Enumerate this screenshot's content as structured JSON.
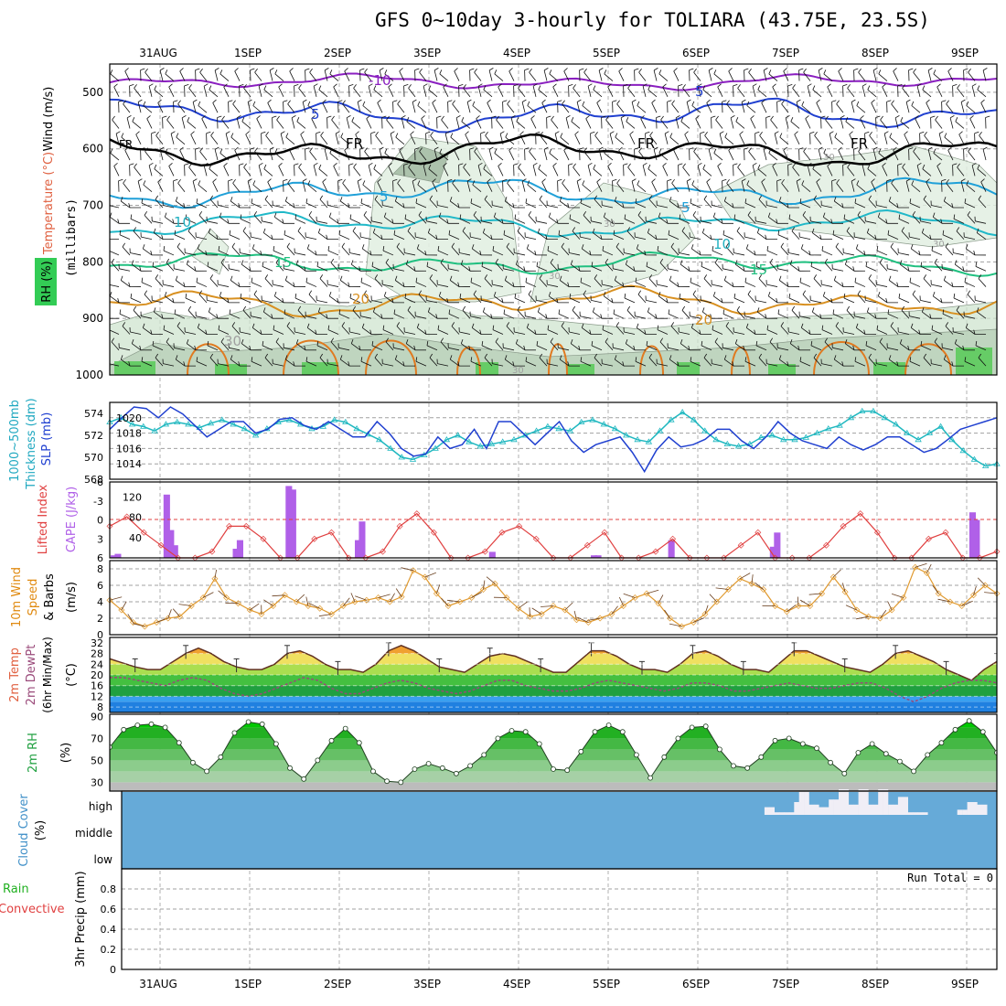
{
  "title": "GFS 0~10day 3-hourly for TOLIARA (43.75E, 23.5S)",
  "dates": [
    "31AUG",
    "1SEP",
    "2SEP",
    "3SEP",
    "4SEP",
    "5SEP",
    "6SEP",
    "7SEP",
    "8SEP",
    "9SEP"
  ],
  "colors": {
    "panel_border": "#000",
    "grid": "#a0a0a0",
    "purple": "#8a1fc0",
    "blue": "#2040d0",
    "teal": "#20b0c0",
    "green": "#20c060",
    "orange": "#e08a10",
    "cloud": "#66aad8"
  },
  "panels": {
    "upper": {
      "labels": [
        "Wind (m/s)",
        "Temperature (°C)",
        "RH (%)",
        "(millibars)"
      ],
      "yticks": [
        "500",
        "600",
        "700",
        "800",
        "900",
        "1000"
      ],
      "contour_labels": [
        {
          "text": "-10",
          "color": "#8a1fc0"
        },
        {
          "text": "5",
          "color": "#2040d0"
        },
        {
          "text": "FR",
          "color": "#000"
        },
        {
          "text": "5",
          "color": "#20a0d8"
        },
        {
          "text": "10",
          "color": "#20b0c0"
        },
        {
          "text": "15",
          "color": "#20c080"
        },
        {
          "text": "20",
          "color": "#d89020"
        },
        {
          "text": "30",
          "color": "#a0a0a0"
        }
      ]
    },
    "pressure": {
      "labels": [
        "1000~500mb",
        "Thickness (dm)",
        "SLP (mb)"
      ],
      "left_ticks": [
        "574",
        "572",
        "570",
        "568"
      ],
      "right_ticks": [
        "1020",
        "1018",
        "1016",
        "1014"
      ]
    },
    "instability": {
      "labels": [
        "Lifted Index",
        "CAPE (J/kg)"
      ],
      "left_ticks": [
        "-6",
        "-3",
        "0",
        "3",
        "6"
      ],
      "right_ticks": [
        "120",
        "80",
        "40"
      ]
    },
    "wind10m": {
      "labels": [
        "10m Wind",
        "Speed",
        "& Barbs",
        "(m/s)"
      ],
      "ticks": [
        "8",
        "6",
        "4",
        "2",
        "0"
      ]
    },
    "temp2m": {
      "labels": [
        "2m Temp",
        "2m DewPt",
        "(6hr Min/Max)",
        "(°C)"
      ],
      "ticks": [
        "32",
        "28",
        "24",
        "20",
        "16",
        "12",
        "8"
      ]
    },
    "rh2m": {
      "labels": [
        "2m RH",
        "(%)"
      ],
      "ticks": [
        "90",
        "70",
        "50",
        "30"
      ]
    },
    "cloud": {
      "labels": [
        "Cloud Cover",
        "(%)"
      ],
      "levels": [
        "high",
        "middle",
        "low"
      ]
    },
    "precip": {
      "labels": [
        "Total / Rain",
        "Convective",
        "3hr Precip (mm)"
      ],
      "ticks": [
        "0.8",
        "0.6",
        "0.4",
        "0.2",
        "0"
      ],
      "run_total": "Run Total = 0"
    }
  },
  "chart_data": [
    {
      "type": "line",
      "title": "1000~500mb Thickness (dm)",
      "ylim": [
        568,
        575
      ],
      "series": [
        {
          "name": "Thickness",
          "values": [
            573.2,
            573.6,
            573.0,
            572.8,
            572.4,
            573.0,
            573.2,
            573.0,
            572.7,
            573.1,
            573.4,
            573.0,
            572.6,
            572.0,
            572.6,
            573.2,
            573.4,
            573.0,
            572.6,
            572.8,
            573.4,
            573.2,
            572.6,
            572.1,
            571.6,
            570.8,
            570.0,
            569.8,
            570.2,
            570.8,
            571.6,
            572.0,
            571.4,
            571.0,
            571.2,
            571.4,
            571.6,
            572.0,
            572.4,
            572.8,
            572.6,
            572.4,
            573.2,
            573.4,
            573.0,
            572.6,
            572.0,
            571.6,
            571.4,
            572.4,
            573.4,
            574.1,
            573.4,
            572.4,
            571.6,
            571.2,
            571.0,
            571.2,
            571.8,
            572.0,
            571.6,
            571.6,
            571.8,
            572.2,
            572.6,
            572.9,
            573.6,
            574.2,
            574.2,
            573.6,
            573.0,
            572.2,
            571.6,
            572.2,
            572.8,
            571.6,
            570.6,
            569.8,
            569.2,
            569.4
          ]
        }
      ]
    },
    {
      "type": "line",
      "title": "SLP (mb)",
      "ylim": [
        1012,
        1022
      ],
      "series": [
        {
          "name": "SLP",
          "values": [
            1018.5,
            1020.0,
            1021.4,
            1021.2,
            1020.0,
            1021.4,
            1020.5,
            1019.0,
            1017.5,
            1018.5,
            1019.5,
            1019.5,
            1018.0,
            1018.5,
            1019.8,
            1020.0,
            1019.0,
            1018.5,
            1019.5,
            1018.5,
            1017.5,
            1017.5,
            1019.5,
            1018.0,
            1016.0,
            1015.0,
            1015.3,
            1017.5,
            1016.0,
            1016.5,
            1018.5,
            1016.0,
            1019.5,
            1019.5,
            1018.0,
            1016.5,
            1018.0,
            1019.5,
            1017.0,
            1015.5,
            1016.5,
            1017.0,
            1017.5,
            1015.5,
            1013.0,
            1015.8,
            1017.5,
            1016.2,
            1016.5,
            1017.2,
            1018.5,
            1018.5,
            1017.0,
            1016.0,
            1017.5,
            1019.5,
            1018.0,
            1017.0,
            1016.5,
            1016.0,
            1017.5,
            1016.5,
            1015.8,
            1016.5,
            1017.5,
            1017.5,
            1016.5,
            1015.5,
            1016.0,
            1017.2,
            1018.5,
            1019.0,
            1019.5,
            1020.0
          ]
        }
      ]
    },
    {
      "type": "bar",
      "title": "CAPE (J/kg)",
      "ylim": [
        0,
        150
      ],
      "series": [
        {
          "name": "CAPE",
          "values": [
            5,
            8,
            0,
            0,
            0,
            0,
            0,
            0,
            0,
            0,
            0,
            0,
            0,
            125,
            55,
            25,
            0,
            0,
            0,
            0,
            0,
            0,
            0,
            0,
            0,
            0,
            0,
            0,
            0,
            0,
            18,
            35,
            0,
            0,
            0,
            0,
            0,
            0,
            0,
            0,
            0,
            0,
            0,
            142,
            135,
            0,
            0,
            0,
            0,
            0,
            0,
            0,
            0,
            0,
            0,
            0,
            0,
            0,
            0,
            0,
            35,
            72,
            0,
            0,
            0,
            0,
            0,
            0,
            0,
            0,
            0,
            0,
            0,
            0,
            0,
            0,
            0,
            0,
            0,
            0,
            0,
            0,
            0,
            0,
            0,
            0,
            0,
            0,
            0,
            0,
            0,
            0,
            0,
            12,
            0,
            0,
            0,
            0,
            0,
            0,
            0,
            0,
            0,
            0,
            0,
            0,
            0,
            0,
            0,
            0,
            0,
            0,
            0,
            0,
            0,
            0,
            0,
            0,
            5,
            5,
            0,
            0,
            0,
            0,
            0,
            0,
            0,
            0,
            0,
            0,
            0,
            0,
            0,
            0,
            0,
            0,
            0,
            35,
            0,
            0,
            0,
            0,
            0,
            0,
            0,
            0,
            0,
            0,
            0,
            0,
            0,
            0,
            0,
            0,
            0,
            0,
            0,
            0,
            0,
            0,
            0,
            0,
            22,
            50,
            0,
            0,
            0,
            0,
            0,
            0,
            0,
            0,
            0,
            0,
            0,
            0,
            0,
            0,
            0,
            0,
            0,
            0,
            0,
            0,
            0,
            0,
            0,
            0,
            0,
            0,
            0,
            0,
            0,
            0,
            0,
            0,
            0,
            0,
            0,
            0,
            0,
            0,
            0,
            0,
            0,
            0,
            0,
            0,
            0,
            0,
            0,
            90,
            75,
            0,
            0,
            0,
            0,
            0
          ]
        }
      ]
    },
    {
      "type": "line",
      "title": "Lifted Index",
      "ylim": [
        6,
        -6
      ],
      "series": [
        {
          "name": "Lifted Index",
          "values": [
            1,
            -0.5,
            2,
            4,
            6,
            6,
            5,
            1,
            1,
            3,
            6,
            6,
            3,
            2,
            6,
            6,
            5,
            1,
            -1,
            2,
            6,
            6,
            5,
            2,
            1,
            3,
            6,
            6,
            4,
            2,
            6,
            6,
            5,
            3,
            6,
            6,
            6,
            4,
            2,
            6,
            6,
            6,
            4,
            1,
            -1,
            2,
            6,
            6,
            3,
            2,
            6,
            6,
            5
          ]
        }
      ]
    },
    {
      "type": "line",
      "title": "10m Wind Speed (m/s)",
      "ylim": [
        0,
        9
      ],
      "series": [
        {
          "name": "Wind Speed",
          "values": [
            4.2,
            3.0,
            1.5,
            1.0,
            1.5,
            2.0,
            2.2,
            3.5,
            4.5,
            6.8,
            4.5,
            3.8,
            3.0,
            2.5,
            3.5,
            4.8,
            4.0,
            3.5,
            3.2,
            2.5,
            3.5,
            4.0,
            4.2,
            4.5,
            4.0,
            4.6,
            7.8,
            7.0,
            5.0,
            3.5,
            4.0,
            4.5,
            5.5,
            6.2,
            4.5,
            3.2,
            2.2,
            2.5,
            3.5,
            3.0,
            1.8,
            1.5,
            2.0,
            2.5,
            3.5,
            4.5,
            5.0,
            3.8,
            2.0,
            1.0,
            1.5,
            2.5,
            4.0,
            5.5,
            6.8,
            6.2,
            5.5,
            3.5,
            2.8,
            3.5,
            3.5,
            5.0,
            7.0,
            5.2,
            3.0,
            2.2,
            2.0,
            3.0,
            4.5,
            8.2,
            7.5,
            5.0,
            4.0,
            3.5,
            4.8,
            6.0,
            5.0
          ]
        }
      ]
    },
    {
      "type": "area",
      "title": "2m Temp (°C)",
      "ylim": [
        6,
        34
      ],
      "series": [
        {
          "name": "Temp",
          "values": [
            26,
            24.5,
            23,
            22,
            22,
            25,
            28,
            30,
            28,
            25,
            23,
            22,
            22,
            24,
            28,
            29,
            27,
            24,
            22,
            22,
            21,
            24,
            29,
            31,
            29,
            26,
            23,
            22,
            21,
            24,
            27,
            28,
            27,
            25,
            23,
            21,
            21,
            25,
            29,
            29,
            27,
            24,
            22,
            22,
            21,
            24,
            28,
            29,
            27,
            24,
            22,
            22,
            21,
            25,
            29,
            29,
            27,
            25,
            23,
            22,
            21,
            24,
            28,
            29,
            27,
            25,
            22,
            20,
            18,
            22,
            25
          ]
        },
        {
          "name": "DewPt",
          "values": [
            19,
            19,
            18,
            17,
            16,
            18,
            19,
            18,
            15,
            13,
            12,
            13,
            15,
            17,
            19,
            18,
            15,
            13,
            13,
            15,
            17,
            18,
            17,
            15,
            14,
            13,
            14,
            16,
            18,
            18,
            16,
            15,
            14,
            14,
            15,
            17,
            18,
            17,
            16,
            15,
            14,
            15,
            17,
            17,
            16,
            14,
            14,
            15,
            16,
            17,
            16,
            15,
            15,
            16,
            17,
            17,
            15,
            12,
            10,
            12,
            15,
            17,
            18,
            18,
            17
          ]
        }
      ]
    },
    {
      "type": "area",
      "title": "2m RH (%)",
      "ylim": [
        22,
        92
      ],
      "series": [
        {
          "name": "RH",
          "values": [
            62,
            78,
            82,
            83,
            80,
            66,
            48,
            40,
            53,
            75,
            85,
            83,
            65,
            43,
            33,
            50,
            68,
            79,
            66,
            40,
            31,
            30,
            42,
            47,
            43,
            38,
            45,
            55,
            70,
            77,
            76,
            65,
            42,
            41,
            58,
            76,
            82,
            76,
            55,
            34,
            53,
            70,
            80,
            81,
            60,
            45,
            43,
            53,
            68,
            70,
            65,
            61,
            48,
            38,
            57,
            65,
            56,
            49,
            40,
            55,
            66,
            78,
            86,
            76,
            57
          ]
        }
      ]
    },
    {
      "type": "bar",
      "title": "Cloud Cover high (%)",
      "ylim": [
        0,
        100
      ],
      "series": [
        {
          "name": "high",
          "values": [
            0,
            0,
            0,
            0,
            0,
            0,
            0,
            0,
            0,
            0,
            0,
            0,
            0,
            0,
            0,
            0,
            0,
            0,
            0,
            0,
            0,
            0,
            0,
            0,
            0,
            0,
            0,
            0,
            0,
            0,
            0,
            0,
            0,
            0,
            0,
            0,
            0,
            0,
            0,
            0,
            0,
            0,
            0,
            0,
            0,
            0,
            0,
            0,
            0,
            0,
            0,
            0,
            0,
            0,
            0,
            0,
            0,
            0,
            0,
            0,
            0,
            0,
            0,
            0,
            0,
            0,
            0,
            0,
            0,
            0,
            0,
            0,
            0,
            0,
            0,
            0,
            0,
            0,
            0,
            0,
            0,
            0,
            0,
            0,
            0,
            0,
            0,
            0,
            0,
            0,
            0,
            0,
            0,
            0,
            0,
            0,
            0,
            0,
            0,
            0,
            0,
            0,
            0,
            0,
            0,
            0,
            0,
            0,
            0,
            0,
            0,
            0,
            0,
            0,
            0,
            0,
            0,
            0,
            0,
            0,
            0,
            0,
            0,
            0,
            0,
            0,
            0,
            0,
            0,
            0,
            30,
            30,
            10,
            10,
            10,
            10,
            50,
            90,
            90,
            40,
            40,
            30,
            30,
            60,
            60,
            100,
            100,
            40,
            40,
            100,
            100,
            40,
            40,
            100,
            100,
            40,
            40,
            70,
            70,
            10,
            10,
            10,
            10,
            0,
            0,
            0,
            0,
            0,
            0,
            20,
            20,
            50,
            50,
            40,
            40,
            0,
            0
          ]
        }
      ]
    },
    {
      "type": "bar",
      "title": "3hr Precip (mm)",
      "ylim": [
        0,
        1
      ],
      "series": [
        {
          "name": "precip",
          "values": []
        }
      ]
    }
  ]
}
